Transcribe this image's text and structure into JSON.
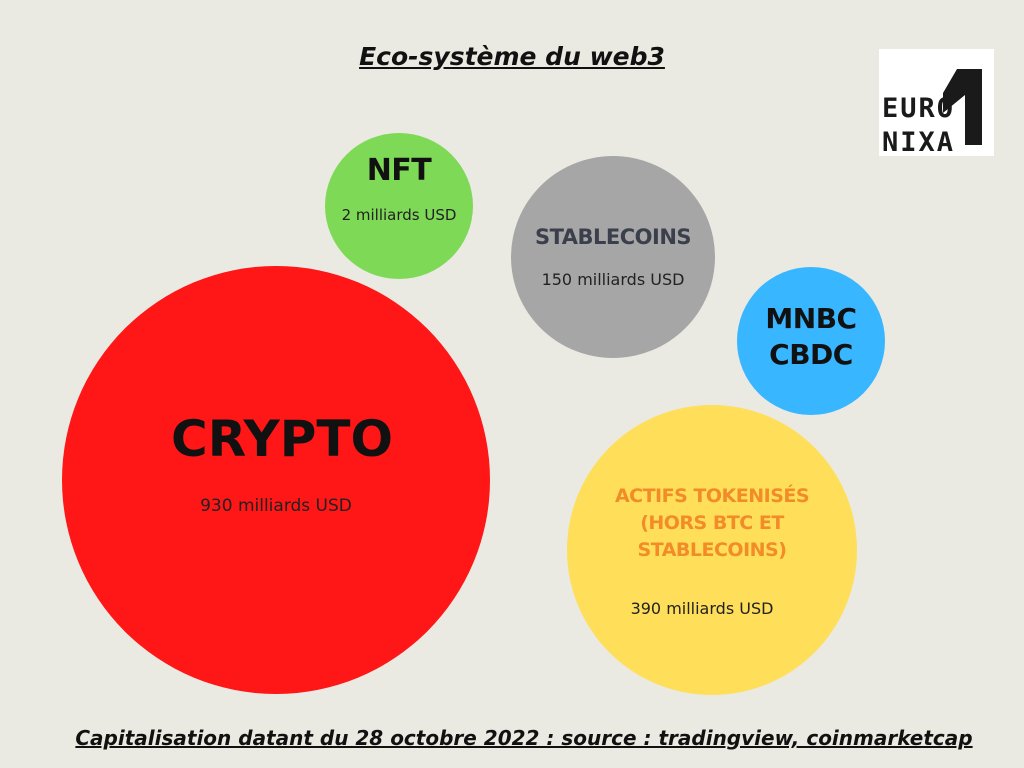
{
  "title": "Eco-système du web3",
  "footer": "Capitalisation datant du 28 octobre 2022 : source : tradingview, coinmarketcap",
  "logo": {
    "line1": "EURO",
    "line2": "NIXA"
  },
  "bubbles": {
    "nft": {
      "label": "NFT",
      "value": "2 milliards USD",
      "color": "#7ed957"
    },
    "stablecoins": {
      "label": "STABLECOINS",
      "value": "150 milliards USD",
      "color": "#a6a6a6"
    },
    "mnbc": {
      "label1": "MNBC",
      "label2": "CBDC",
      "color": "#38b6ff"
    },
    "crypto": {
      "label": "CRYPTO",
      "value": "930 milliards USD",
      "color": "#ff1616"
    },
    "actifs": {
      "label1": "ACTIFS TOKENISÉS",
      "label2": "(HORS BTC ET",
      "label3": "STABLECOINS)",
      "value": "390 milliards USD",
      "color": "#ffde59"
    }
  }
}
